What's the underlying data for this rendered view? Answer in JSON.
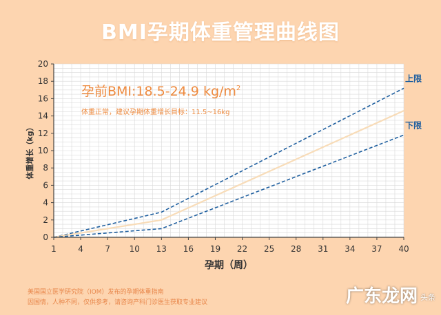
{
  "title": "BMI孕期体重管理曲线图",
  "footer": {
    "line1": "美国国立医学研究院（IOM）发布的孕期体重指南",
    "line2": "因国情，人种不同，仅供参考，请咨询产科门诊医生获取专业建议"
  },
  "watermark": {
    "main": "广东龙网",
    "small": "头条"
  },
  "chart_data": {
    "type": "line",
    "title": "",
    "xlabel": "孕期（周）",
    "ylabel": "体重增长（kg）",
    "xlim": [
      1,
      40
    ],
    "ylim": [
      0,
      20
    ],
    "x_ticks": [
      "1",
      "4",
      "7",
      "10",
      "13",
      "16",
      "19",
      "22",
      "25",
      "28",
      "31",
      "34",
      "37",
      "40"
    ],
    "x_tick_values": [
      1,
      4,
      7,
      10,
      13,
      16,
      19,
      22,
      25,
      28,
      31,
      34,
      37,
      40
    ],
    "y_ticks": [
      "0",
      "2",
      "4",
      "6",
      "8",
      "10",
      "12",
      "14",
      "16",
      "18",
      "20"
    ],
    "y_tick_values": [
      0,
      2,
      4,
      6,
      8,
      10,
      12,
      14,
      16,
      18,
      20
    ],
    "grid": true,
    "annotation": {
      "main": "孕前BMI:18.5-24.9 kg/m",
      "superscript": "2",
      "sub": "体重正常，建议孕期体重增长目标：11.5~16kg"
    },
    "series": [
      {
        "name": "上限",
        "style": "dashed",
        "color": "#1f5f9f",
        "x": [
          1,
          13,
          40
        ],
        "y": [
          0,
          2.9,
          17.2
        ]
      },
      {
        "name": "",
        "style": "solid",
        "color": "#f8dcb8",
        "x": [
          1,
          13,
          40
        ],
        "y": [
          0,
          2.0,
          14.6
        ]
      },
      {
        "name": "下限",
        "style": "dashed",
        "color": "#1f5f9f",
        "x": [
          1,
          13,
          40
        ],
        "y": [
          0,
          1.0,
          11.8
        ]
      }
    ]
  }
}
